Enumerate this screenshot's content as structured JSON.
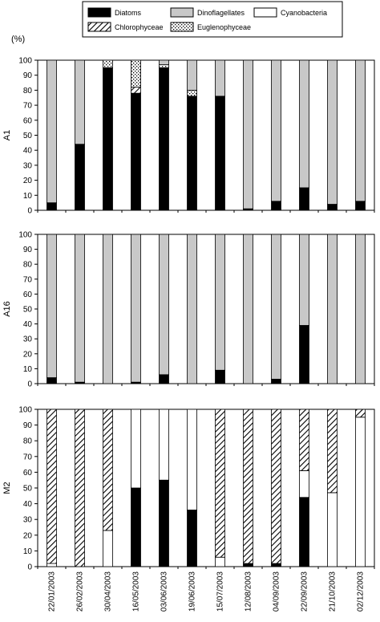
{
  "legend": {
    "items": [
      {
        "name": "Diatoms",
        "fill": "black"
      },
      {
        "name": "Dinoflagellates",
        "fill": "gray"
      },
      {
        "name": "Cyanobacteria",
        "fill": "white"
      },
      {
        "name": "Chlorophyceae",
        "fill": "hatch"
      },
      {
        "name": "Euglenophyceae",
        "fill": "dots"
      }
    ]
  },
  "unit_label": "(%)",
  "colors": {
    "gray": "#c8c8c8",
    "black": "#000000",
    "white": "#ffffff"
  },
  "chart_data": [
    {
      "type": "bar",
      "stacked": true,
      "panel": "A1",
      "ylabel": "A1",
      "ylim": [
        0,
        100
      ],
      "yticks": [
        0,
        10,
        20,
        30,
        40,
        50,
        60,
        70,
        80,
        90,
        100
      ],
      "categories": [
        "22/01/2003",
        "26/02/2003",
        "30/04/2003",
        "16/05/2003",
        "03/06/2003",
        "19/06/2003",
        "15/07/2003",
        "12/08/2003",
        "04/09/2003",
        "22/09/2003",
        "21/10/2003",
        "02/12/2003"
      ],
      "series": [
        {
          "name": "Diatoms",
          "values": [
            5,
            44,
            95,
            78,
            95,
            76,
            76,
            1,
            6,
            15,
            4,
            6
          ]
        },
        {
          "name": "Chlorophyceae",
          "values": [
            0,
            0,
            0,
            4,
            0,
            0,
            0,
            0,
            0,
            0,
            0,
            0
          ]
        },
        {
          "name": "Euglenophyceae",
          "values": [
            0,
            0,
            5,
            18,
            2,
            4,
            0,
            0,
            0,
            0,
            0,
            0
          ]
        },
        {
          "name": "Dinoflagellates",
          "values": [
            95,
            56,
            0,
            0,
            3,
            20,
            24,
            99,
            94,
            85,
            96,
            94
          ]
        }
      ]
    },
    {
      "type": "bar",
      "stacked": true,
      "panel": "A16",
      "ylabel": "A16",
      "ylim": [
        0,
        100
      ],
      "yticks": [
        0,
        10,
        20,
        30,
        40,
        50,
        60,
        70,
        80,
        90,
        100
      ],
      "categories": [
        "22/01/2003",
        "26/02/2003",
        "30/04/2003",
        "16/05/2003",
        "03/06/2003",
        "19/06/2003",
        "15/07/2003",
        "12/08/2003",
        "04/09/2003",
        "22/09/2003",
        "21/10/2003",
        "02/12/2003"
      ],
      "series": [
        {
          "name": "Diatoms",
          "values": [
            4,
            1,
            0,
            1,
            6,
            0,
            9,
            0,
            3,
            39,
            0,
            0
          ]
        },
        {
          "name": "Dinoflagellates",
          "values": [
            96,
            99,
            100,
            99,
            94,
            100,
            91,
            100,
            97,
            61,
            100,
            100
          ]
        }
      ]
    },
    {
      "type": "bar",
      "stacked": true,
      "panel": "M2",
      "ylabel": "M2",
      "ylim": [
        0,
        100
      ],
      "yticks": [
        0,
        10,
        20,
        30,
        40,
        50,
        60,
        70,
        80,
        90,
        100
      ],
      "categories": [
        "22/01/2003",
        "26/02/2003",
        "30/04/2003",
        "16/05/2003",
        "03/06/2003",
        "19/06/2003",
        "15/07/2003",
        "12/08/2003",
        "04/09/2003",
        "22/09/2003",
        "21/10/2003",
        "02/12/2003"
      ],
      "series": [
        {
          "name": "Diatoms",
          "values": [
            0,
            0,
            0,
            50,
            55,
            36,
            0,
            2,
            2,
            44,
            0,
            0
          ]
        },
        {
          "name": "Cyanobacteria",
          "values": [
            2,
            0,
            23,
            50,
            45,
            64,
            6,
            0,
            0,
            17,
            47,
            95
          ]
        },
        {
          "name": "Chlorophyceae",
          "values": [
            98,
            100,
            77,
            0,
            0,
            0,
            94,
            98,
            98,
            39,
            53,
            5
          ]
        }
      ]
    }
  ]
}
